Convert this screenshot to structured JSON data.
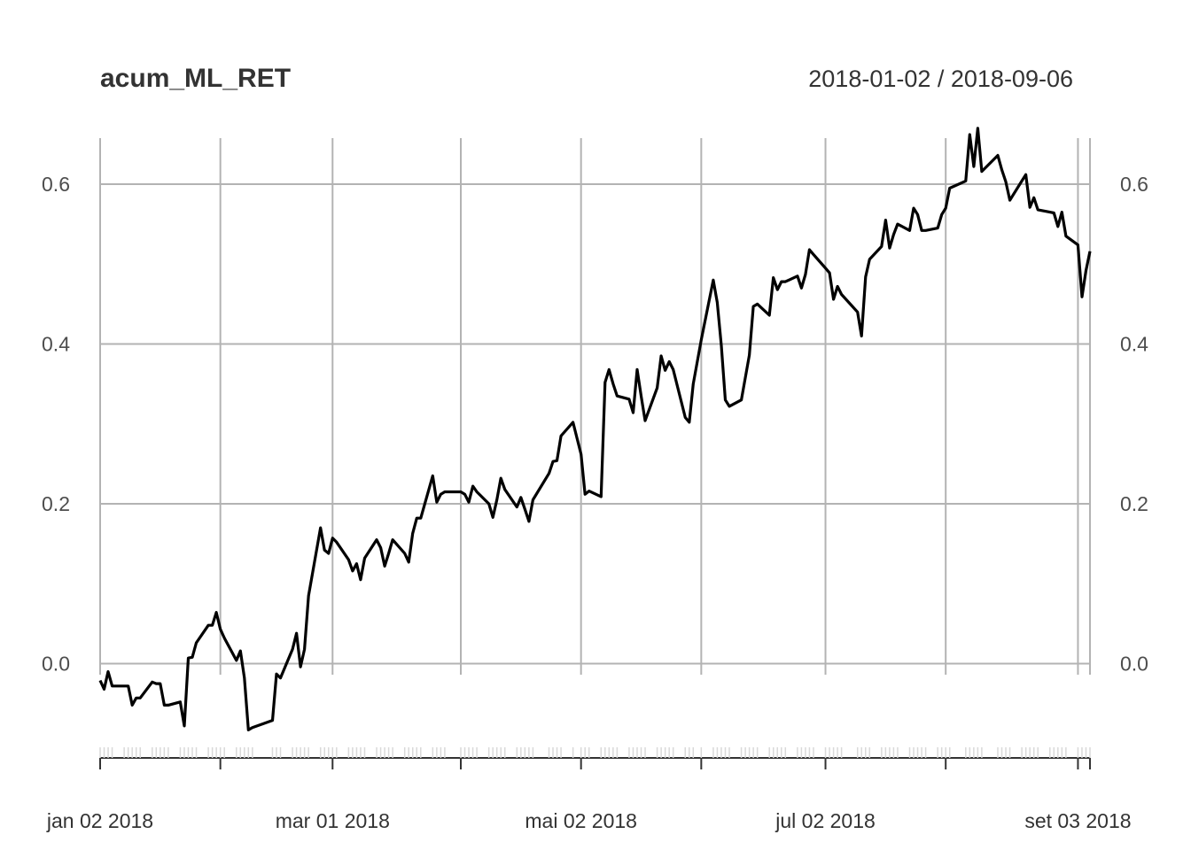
{
  "chart_data": {
    "type": "line",
    "title": "acum_ML_RET",
    "date_range": "2018-01-02 / 2018-09-06",
    "xlabel": "",
    "ylabel": "",
    "ylim": [
      -0.11,
      0.67
    ],
    "y_ticks": [
      0.0,
      0.2,
      0.4,
      0.6
    ],
    "y_tick_labels": [
      "0.0",
      "0.2",
      "0.4",
      "0.6"
    ],
    "x_labels": [
      {
        "date": "2018-01-02",
        "label": "jan 02 2018"
      },
      {
        "date": "2018-03-01",
        "label": "mar 01 2018"
      },
      {
        "date": "2018-05-02",
        "label": "mai 02 2018"
      },
      {
        "date": "2018-07-02",
        "label": "jul 02 2018"
      },
      {
        "date": "2018-09-03",
        "label": "set 03 2018"
      }
    ],
    "x_grid_dates": [
      "2018-01-02",
      "2018-02-01",
      "2018-03-01",
      "2018-04-02",
      "2018-05-02",
      "2018-06-01",
      "2018-07-02",
      "2018-08-01",
      "2018-09-03"
    ],
    "grid": true,
    "series": [
      {
        "color": "#000000",
        "points": [
          [
            "2018-01-02",
            -0.021
          ],
          [
            "2018-01-03",
            -0.032
          ],
          [
            "2018-01-04",
            -0.01
          ],
          [
            "2018-01-05",
            -0.028
          ],
          [
            "2018-01-08",
            -0.028
          ],
          [
            "2018-01-09",
            -0.028
          ],
          [
            "2018-01-10",
            -0.052
          ],
          [
            "2018-01-11",
            -0.043
          ],
          [
            "2018-01-12",
            -0.043
          ],
          [
            "2018-01-15",
            -0.023
          ],
          [
            "2018-01-16",
            -0.025
          ],
          [
            "2018-01-17",
            -0.025
          ],
          [
            "2018-01-18",
            -0.052
          ],
          [
            "2018-01-19",
            -0.052
          ],
          [
            "2018-01-22",
            -0.048
          ],
          [
            "2018-01-23",
            -0.078
          ],
          [
            "2018-01-24",
            0.007
          ],
          [
            "2018-01-25",
            0.008
          ],
          [
            "2018-01-26",
            0.026
          ],
          [
            "2018-01-29",
            0.048
          ],
          [
            "2018-01-30",
            0.048
          ],
          [
            "2018-01-31",
            0.064
          ],
          [
            "2018-02-01",
            0.043
          ],
          [
            "2018-02-02",
            0.032
          ],
          [
            "2018-02-05",
            0.004
          ],
          [
            "2018-02-06",
            0.016
          ],
          [
            "2018-02-07",
            -0.018
          ],
          [
            "2018-02-08",
            -0.083
          ],
          [
            "2018-02-09",
            -0.08
          ],
          [
            "2018-02-14",
            -0.071
          ],
          [
            "2018-02-15",
            -0.013
          ],
          [
            "2018-02-16",
            -0.018
          ],
          [
            "2018-02-19",
            0.018
          ],
          [
            "2018-02-20",
            0.038
          ],
          [
            "2018-02-21",
            -0.004
          ],
          [
            "2018-02-22",
            0.018
          ],
          [
            "2018-02-23",
            0.085
          ],
          [
            "2018-02-26",
            0.17
          ],
          [
            "2018-02-27",
            0.142
          ],
          [
            "2018-02-28",
            0.138
          ],
          [
            "2018-03-01",
            0.157
          ],
          [
            "2018-03-02",
            0.152
          ],
          [
            "2018-03-05",
            0.13
          ],
          [
            "2018-03-06",
            0.116
          ],
          [
            "2018-03-07",
            0.125
          ],
          [
            "2018-03-08",
            0.105
          ],
          [
            "2018-03-09",
            0.132
          ],
          [
            "2018-03-12",
            0.155
          ],
          [
            "2018-03-13",
            0.145
          ],
          [
            "2018-03-14",
            0.122
          ],
          [
            "2018-03-15",
            0.138
          ],
          [
            "2018-03-16",
            0.155
          ],
          [
            "2018-03-19",
            0.138
          ],
          [
            "2018-03-20",
            0.127
          ],
          [
            "2018-03-21",
            0.163
          ],
          [
            "2018-03-22",
            0.182
          ],
          [
            "2018-03-23",
            0.182
          ],
          [
            "2018-03-26",
            0.235
          ],
          [
            "2018-03-27",
            0.202
          ],
          [
            "2018-03-28",
            0.212
          ],
          [
            "2018-03-29",
            0.215
          ],
          [
            "2018-04-02",
            0.215
          ],
          [
            "2018-04-03",
            0.212
          ],
          [
            "2018-04-04",
            0.202
          ],
          [
            "2018-04-05",
            0.222
          ],
          [
            "2018-04-06",
            0.215
          ],
          [
            "2018-04-09",
            0.2
          ],
          [
            "2018-04-10",
            0.183
          ],
          [
            "2018-04-11",
            0.205
          ],
          [
            "2018-04-12",
            0.232
          ],
          [
            "2018-04-13",
            0.218
          ],
          [
            "2018-04-16",
            0.196
          ],
          [
            "2018-04-17",
            0.208
          ],
          [
            "2018-04-18",
            0.193
          ],
          [
            "2018-04-19",
            0.178
          ],
          [
            "2018-04-20",
            0.205
          ],
          [
            "2018-04-24",
            0.238
          ],
          [
            "2018-04-25",
            0.253
          ],
          [
            "2018-04-26",
            0.254
          ],
          [
            "2018-04-27",
            0.285
          ],
          [
            "2018-04-30",
            0.302
          ],
          [
            "2018-05-02",
            0.262
          ],
          [
            "2018-05-03",
            0.212
          ],
          [
            "2018-05-04",
            0.216
          ],
          [
            "2018-05-07",
            0.209
          ],
          [
            "2018-05-08",
            0.352
          ],
          [
            "2018-05-09",
            0.368
          ],
          [
            "2018-05-10",
            0.35
          ],
          [
            "2018-05-11",
            0.335
          ],
          [
            "2018-05-14",
            0.331
          ],
          [
            "2018-05-15",
            0.314
          ],
          [
            "2018-05-16",
            0.368
          ],
          [
            "2018-05-17",
            0.335
          ],
          [
            "2018-05-18",
            0.304
          ],
          [
            "2018-05-21",
            0.345
          ],
          [
            "2018-05-22",
            0.385
          ],
          [
            "2018-05-23",
            0.367
          ],
          [
            "2018-05-24",
            0.378
          ],
          [
            "2018-05-25",
            0.368
          ],
          [
            "2018-05-28",
            0.308
          ],
          [
            "2018-05-29",
            0.302
          ],
          [
            "2018-05-30",
            0.35
          ],
          [
            "2018-06-01",
            0.405
          ],
          [
            "2018-06-04",
            0.48
          ],
          [
            "2018-06-05",
            0.452
          ],
          [
            "2018-06-06",
            0.398
          ],
          [
            "2018-06-07",
            0.33
          ],
          [
            "2018-06-08",
            0.322
          ],
          [
            "2018-06-11",
            0.33
          ],
          [
            "2018-06-12",
            0.358
          ],
          [
            "2018-06-13",
            0.386
          ],
          [
            "2018-06-14",
            0.447
          ],
          [
            "2018-06-15",
            0.45
          ],
          [
            "2018-06-18",
            0.436
          ],
          [
            "2018-06-19",
            0.483
          ],
          [
            "2018-06-20",
            0.468
          ],
          [
            "2018-06-21",
            0.478
          ],
          [
            "2018-06-22",
            0.478
          ],
          [
            "2018-06-25",
            0.485
          ],
          [
            "2018-06-26",
            0.47
          ],
          [
            "2018-06-27",
            0.487
          ],
          [
            "2018-06-28",
            0.518
          ],
          [
            "2018-06-29",
            0.512
          ],
          [
            "2018-07-02",
            0.495
          ],
          [
            "2018-07-03",
            0.489
          ],
          [
            "2018-07-04",
            0.456
          ],
          [
            "2018-07-05",
            0.472
          ],
          [
            "2018-07-06",
            0.462
          ],
          [
            "2018-07-10",
            0.44
          ],
          [
            "2018-07-11",
            0.41
          ],
          [
            "2018-07-12",
            0.484
          ],
          [
            "2018-07-13",
            0.506
          ],
          [
            "2018-07-16",
            0.522
          ],
          [
            "2018-07-17",
            0.555
          ],
          [
            "2018-07-18",
            0.52
          ],
          [
            "2018-07-19",
            0.537
          ],
          [
            "2018-07-20",
            0.55
          ],
          [
            "2018-07-23",
            0.542
          ],
          [
            "2018-07-24",
            0.57
          ],
          [
            "2018-07-25",
            0.562
          ],
          [
            "2018-07-26",
            0.542
          ],
          [
            "2018-07-27",
            0.542
          ],
          [
            "2018-07-30",
            0.545
          ],
          [
            "2018-07-31",
            0.562
          ],
          [
            "2018-08-01",
            0.57
          ],
          [
            "2018-08-02",
            0.595
          ],
          [
            "2018-08-06",
            0.604
          ],
          [
            "2018-08-07",
            0.662
          ],
          [
            "2018-08-08",
            0.622
          ],
          [
            "2018-08-09",
            0.67
          ],
          [
            "2018-08-10",
            0.616
          ],
          [
            "2018-08-14",
            0.636
          ],
          [
            "2018-08-15",
            0.618
          ],
          [
            "2018-08-16",
            0.603
          ],
          [
            "2018-08-17",
            0.58
          ],
          [
            "2018-08-20",
            0.604
          ],
          [
            "2018-08-21",
            0.612
          ],
          [
            "2018-08-22",
            0.571
          ],
          [
            "2018-08-23",
            0.583
          ],
          [
            "2018-08-24",
            0.568
          ],
          [
            "2018-08-27",
            0.565
          ],
          [
            "2018-08-28",
            0.564
          ],
          [
            "2018-08-29",
            0.547
          ],
          [
            "2018-08-30",
            0.565
          ],
          [
            "2018-08-31",
            0.535
          ],
          [
            "2018-09-03",
            0.524
          ],
          [
            "2018-09-04",
            0.459
          ],
          [
            "2018-09-05",
            0.492
          ],
          [
            "2018-09-06",
            0.516
          ]
        ]
      }
    ]
  }
}
